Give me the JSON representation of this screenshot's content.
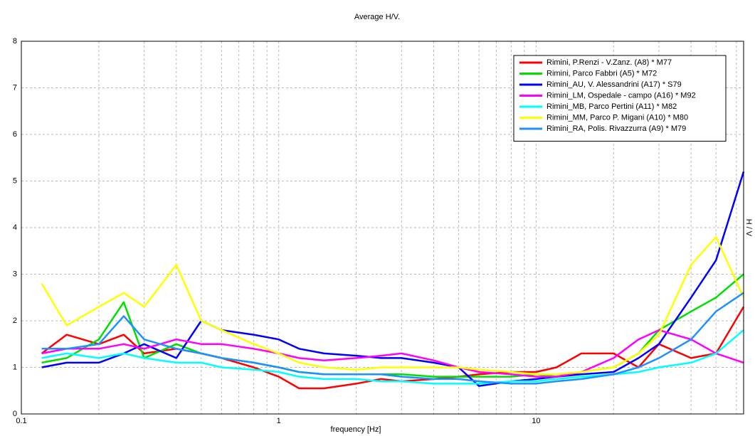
{
  "chart_data": {
    "type": "line",
    "title": "Average H/V.",
    "x_label": "frequency [Hz]",
    "y_label": "H / V",
    "x_log": true,
    "grid": true,
    "legend": "top-right",
    "xlim": [
      0.1,
      64
    ],
    "xticks": [
      0.1,
      1,
      10
    ],
    "xminor": [
      0.2,
      0.3,
      0.4,
      0.5,
      0.6,
      0.7,
      0.8,
      0.9,
      2,
      3,
      4,
      5,
      6,
      7,
      8,
      9,
      20,
      30,
      40,
      50,
      60
    ],
    "ylim": [
      0,
      8
    ],
    "yticks": [
      0,
      1,
      2,
      3,
      4,
      5,
      6,
      7,
      8
    ],
    "x": [
      0.12,
      0.15,
      0.2,
      0.25,
      0.3,
      0.4,
      0.5,
      0.6,
      0.8,
      1,
      1.2,
      1.5,
      2,
      2.5,
      3,
      4,
      5,
      6,
      8,
      10,
      12,
      15,
      20,
      25,
      30,
      40,
      50,
      64
    ],
    "series": [
      {
        "name": "Rimini, P.Renzi - V.Zanz. (A8) * M77",
        "color": "#ff0000",
        "values": [
          1.3,
          1.7,
          1.5,
          1.7,
          1.3,
          1.4,
          1.3,
          1.2,
          1.0,
          0.8,
          0.55,
          0.55,
          0.65,
          0.75,
          0.7,
          0.75,
          0.8,
          0.85,
          0.9,
          0.9,
          1.0,
          1.3,
          1.3,
          1.0,
          1.5,
          1.2,
          1.3,
          2.3
        ]
      },
      {
        "name": "Rimini, Parco Fabbri (A5) * M72",
        "color": "#00e000",
        "values": [
          1.1,
          1.2,
          1.6,
          2.4,
          1.2,
          1.5,
          1.3,
          1.2,
          1.1,
          1.0,
          0.9,
          0.85,
          0.85,
          0.85,
          0.85,
          0.8,
          0.8,
          0.8,
          0.8,
          0.85,
          0.8,
          0.9,
          1.0,
          1.3,
          1.8,
          2.2,
          2.5,
          3.0
        ]
      },
      {
        "name": "Rimini_AU, V. Alessandrini (A17) * S79",
        "color": "#0000ff",
        "values": [
          1.0,
          1.1,
          1.1,
          1.3,
          1.5,
          1.2,
          2.0,
          1.8,
          1.7,
          1.6,
          1.4,
          1.3,
          1.25,
          1.2,
          1.2,
          1.1,
          1.0,
          0.6,
          0.7,
          0.75,
          0.8,
          0.85,
          0.9,
          1.2,
          1.5,
          2.5,
          3.3,
          5.2
        ]
      },
      {
        "name": "Rimini_LM, Ospedale - campo (A16) * M92",
        "color": "#ff00ff",
        "values": [
          1.3,
          1.4,
          1.4,
          1.5,
          1.4,
          1.6,
          1.5,
          1.5,
          1.4,
          1.3,
          1.2,
          1.15,
          1.2,
          1.25,
          1.3,
          1.15,
          1.0,
          0.9,
          0.85,
          0.8,
          0.8,
          0.9,
          1.2,
          1.6,
          1.8,
          1.6,
          1.3,
          1.1
        ]
      },
      {
        "name": "Rimini_MB, Parco Pertini (A11) * M82",
        "color": "#00ffff",
        "values": [
          1.2,
          1.3,
          1.2,
          1.3,
          1.2,
          1.1,
          1.1,
          1.0,
          0.95,
          0.9,
          0.8,
          0.75,
          0.75,
          0.7,
          0.7,
          0.65,
          0.65,
          0.65,
          0.7,
          0.7,
          0.75,
          0.8,
          0.85,
          0.9,
          1.0,
          1.1,
          1.3,
          1.8
        ]
      },
      {
        "name": "Rimini_MM, Parco P. Migani (A10) * M80",
        "color": "#ffff00",
        "values": [
          2.8,
          1.9,
          2.3,
          2.6,
          2.3,
          3.2,
          2.0,
          1.8,
          1.5,
          1.3,
          1.1,
          1.0,
          0.95,
          1.0,
          1.0,
          1.0,
          1.0,
          0.95,
          0.9,
          0.85,
          0.85,
          0.9,
          1.0,
          1.3,
          1.7,
          3.2,
          3.8,
          2.5
        ]
      },
      {
        "name": "Rimini_RA, Polis. Rivazzurra (A9) * M79",
        "color": "#1e90ff",
        "values": [
          1.4,
          1.4,
          1.5,
          2.1,
          1.6,
          1.4,
          1.3,
          1.2,
          1.1,
          1.0,
          0.9,
          0.85,
          0.85,
          0.85,
          0.8,
          0.75,
          0.75,
          0.7,
          0.65,
          0.65,
          0.7,
          0.75,
          0.85,
          1.0,
          1.2,
          1.6,
          2.2,
          2.6
        ]
      }
    ]
  }
}
